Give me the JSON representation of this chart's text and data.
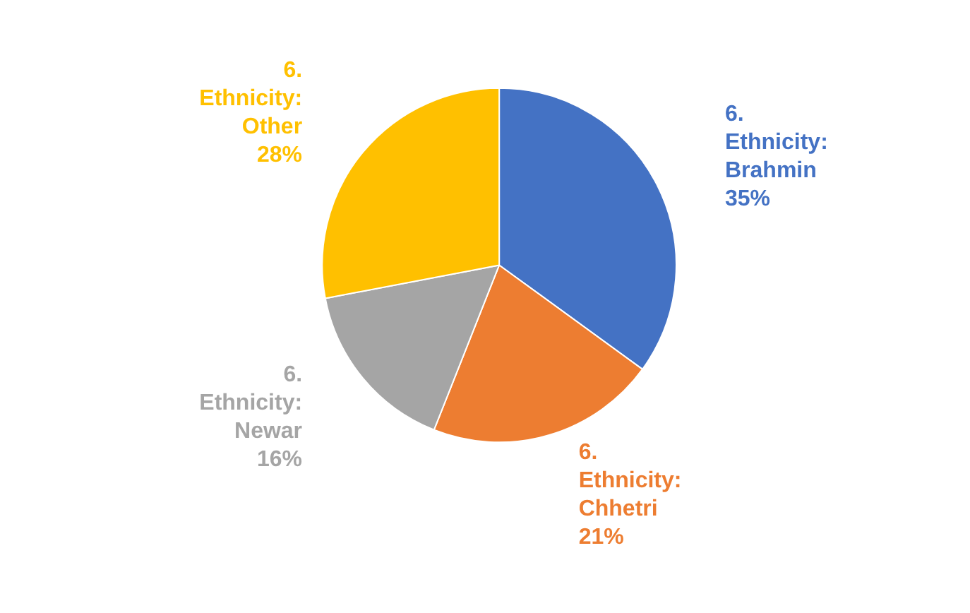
{
  "chart_data": {
    "type": "pie",
    "categories": [
      "6. Ethnicity: Brahmin",
      "6. Ethnicity: Chhetri",
      "6. Ethnicity: Newar",
      "6. Ethnicity: Other"
    ],
    "values": [
      35,
      21,
      16,
      28
    ],
    "colors": [
      "#4472c4",
      "#ed7d31",
      "#a5a5a5",
      "#ffc000"
    ],
    "value_labels": [
      "35%",
      "21%",
      "16%",
      "28%"
    ],
    "legend": false
  }
}
